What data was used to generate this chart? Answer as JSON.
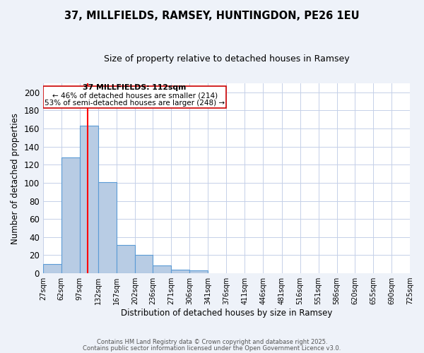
{
  "title": "37, MILLFIELDS, RAMSEY, HUNTINGDON, PE26 1EU",
  "subtitle": "Size of property relative to detached houses in Ramsey",
  "xlabel": "Distribution of detached houses by size in Ramsey",
  "ylabel": "Number of detached properties",
  "bin_edges": [
    27,
    62,
    97,
    132,
    167,
    202,
    236,
    271,
    306,
    341,
    376,
    411,
    446,
    481,
    516,
    551,
    586,
    620,
    655,
    690,
    725
  ],
  "bar_heights": [
    10,
    128,
    163,
    101,
    31,
    20,
    9,
    4,
    3,
    0,
    0,
    0,
    0,
    0,
    0,
    0,
    0,
    0,
    0,
    0
  ],
  "bar_color": "#b8cce4",
  "bar_edge_color": "#5b9bd5",
  "tick_labels": [
    "27sqm",
    "62sqm",
    "97sqm",
    "132sqm",
    "167sqm",
    "202sqm",
    "236sqm",
    "271sqm",
    "306sqm",
    "341sqm",
    "376sqm",
    "411sqm",
    "446sqm",
    "481sqm",
    "516sqm",
    "551sqm",
    "586sqm",
    "620sqm",
    "655sqm",
    "690sqm",
    "725sqm"
  ],
  "ylim": [
    0,
    210
  ],
  "yticks": [
    0,
    20,
    40,
    60,
    80,
    100,
    120,
    140,
    160,
    180,
    200
  ],
  "property_line_x": 112,
  "annotation_text_line1": "37 MILLFIELDS: 112sqm",
  "annotation_text_line2": "← 46% of detached houses are smaller (214)",
  "annotation_text_line3": "53% of semi-detached houses are larger (248) →",
  "bg_color": "#eef2f9",
  "plot_bg_color": "#ffffff",
  "grid_color": "#c5d0e8",
  "footer_line1": "Contains HM Land Registry data © Crown copyright and database right 2025.",
  "footer_line2": "Contains public sector information licensed under the Open Government Licence v3.0."
}
